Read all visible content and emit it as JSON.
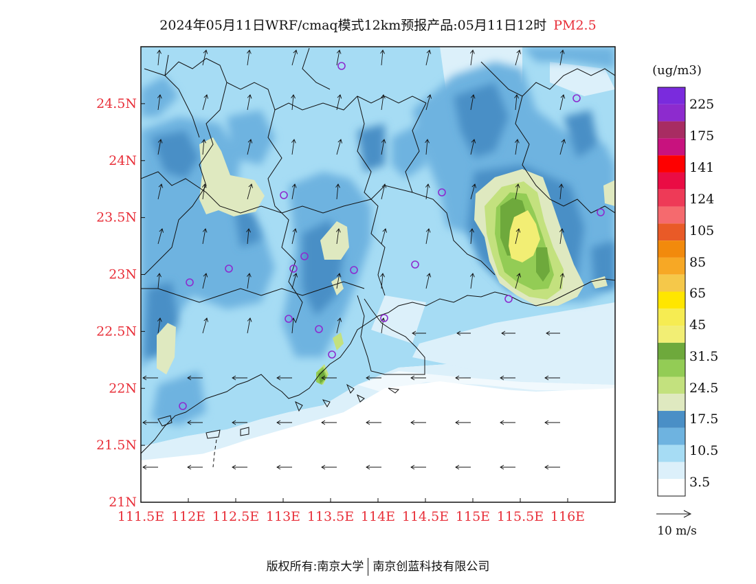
{
  "title": {
    "main": "2024年05月11日WRF/cmaq模式12km预报产品:05月11日12时",
    "variable": "PM2.5"
  },
  "map": {
    "lat_range": [
      21.0,
      25.0
    ],
    "lon_range": [
      111.5,
      116.5
    ],
    "lat_ticks": [
      "21N",
      "21.5N",
      "22N",
      "22.5N",
      "23N",
      "23.5N",
      "24N",
      "24.5N"
    ],
    "lon_ticks": [
      "111.5E",
      "112E",
      "112.5E",
      "113E",
      "113.5E",
      "114E",
      "114.5E",
      "115E",
      "115.5E",
      "116E"
    ],
    "tick_color": "#e8303a"
  },
  "legend": {
    "unit": "(ug/m3)",
    "labels": [
      "3.5",
      "10.5",
      "17.5",
      "24.5",
      "31.5",
      "45",
      "65",
      "85",
      "105",
      "124",
      "141",
      "175",
      "225"
    ],
    "colors": [
      "#ffffff",
      "#dcf0fa",
      "#a6dcf4",
      "#6eb3e0",
      "#4a8fc6",
      "#dfe9c0",
      "#c3e17e",
      "#93cc55",
      "#6ea93c",
      "#f2ee74",
      "#f6ec52",
      "#ffe600",
      "#f5c84a",
      "#f7a825",
      "#f28a0c",
      "#e95a27",
      "#f56a6e",
      "#ee3a57",
      "#ea0c44",
      "#fe0000",
      "#c8127e",
      "#a82c62",
      "#8d2bce",
      "#7a2bdd"
    ]
  },
  "wind_legend": {
    "label": "10 m/s"
  },
  "footer": {
    "left": "版权所有:南京大学",
    "right": "南京创蓝科技有限公司"
  }
}
